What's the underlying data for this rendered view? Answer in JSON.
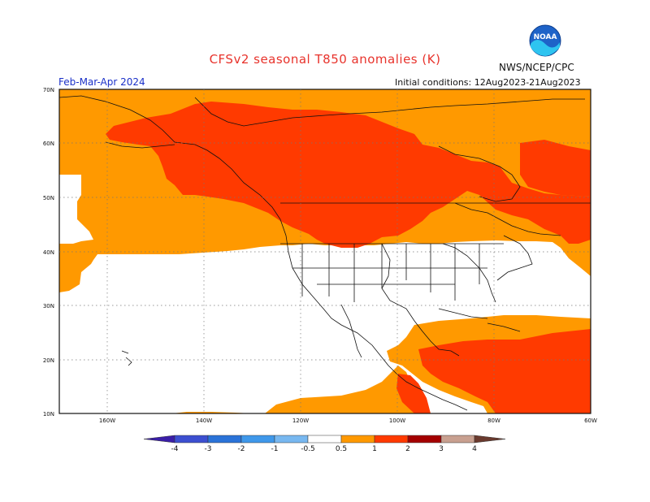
{
  "title": "CFSv2 seasonal T850 anomalies (K)",
  "period": "Feb-Mar-Apr 2024",
  "initial_conditions": "Initial conditions: 12Aug2023-21Aug2023",
  "agency": "NWS/NCEP/CPC",
  "logo_text": "NOAA",
  "lat_labels": [
    "70N",
    "60N",
    "50N",
    "40N",
    "30N",
    "20N",
    "10N"
  ],
  "lon_labels": [
    "160W",
    "140W",
    "120W",
    "100W",
    "80W",
    "60W"
  ],
  "legend": {
    "labels": [
      "-4",
      "-3",
      "-2",
      "-1",
      "-0.5",
      "0.5",
      "1",
      "2",
      "3",
      "4"
    ],
    "colors": [
      "#3a1ea8",
      "#3c4fd0",
      "#2a73d8",
      "#3f98ea",
      "#78b8f0",
      "#ffffff",
      "#ff9900",
      "#ff3a00",
      "#a40000",
      "#c8a090",
      "#6a3a2e"
    ]
  },
  "colors": {
    "anomaly_0_5_to_1": "#ff9900",
    "anomaly_1_to_2": "#ff3a00",
    "anomaly_2_to_3": "#a40000"
  }
}
